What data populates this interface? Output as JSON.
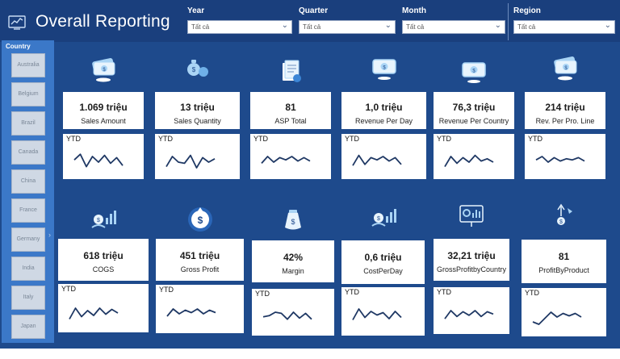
{
  "header": {
    "title": "Overall Reporting",
    "title_icon": "report-chart-icon",
    "filters": [
      {
        "label": "Year",
        "value": "Tất cả"
      },
      {
        "label": "Quarter",
        "value": "Tất cả"
      },
      {
        "label": "Month",
        "value": "Tất cả"
      },
      {
        "label": "Region",
        "value": "Tất cả"
      }
    ]
  },
  "sidebar": {
    "title": "Country",
    "countries": [
      "Australia",
      "Belgium",
      "Brazil",
      "Canada",
      "China",
      "France",
      "Germany",
      "India",
      "Italy",
      "Japan"
    ]
  },
  "kpis_row1": [
    {
      "value": "1.069 triệu",
      "label": "Sales Amount",
      "icon": "cash-stack-icon",
      "ytd": "YTD",
      "spark": [
        0.45,
        0.2,
        0.75,
        0.3,
        0.55,
        0.25,
        0.6,
        0.35,
        0.7
      ]
    },
    {
      "value": "13 triệu",
      "label": "Sales Quantity",
      "icon": "money-bags-icon",
      "ytd": "YTD",
      "spark": [
        0.75,
        0.3,
        0.55,
        0.6,
        0.25,
        0.8,
        0.35,
        0.55,
        0.4
      ]
    },
    {
      "value": "81",
      "label": "ASP Total",
      "icon": "document-check-icon",
      "ytd": "YTD",
      "spark": [
        0.6,
        0.3,
        0.55,
        0.35,
        0.45,
        0.3,
        0.5,
        0.35,
        0.5
      ]
    },
    {
      "value": "1,0 triệu",
      "label": "Revenue Per Day",
      "icon": "cash-bill-icon",
      "ytd": "YTD",
      "spark": [
        0.7,
        0.25,
        0.65,
        0.35,
        0.45,
        0.3,
        0.5,
        0.35,
        0.65
      ]
    },
    {
      "value": "76,3 triệu",
      "label": "Revenue Per Country",
      "icon": "cash-bill-icon",
      "ytd": "YTD",
      "spark": [
        0.75,
        0.3,
        0.6,
        0.35,
        0.55,
        0.25,
        0.5,
        0.4,
        0.55
      ]
    },
    {
      "value": "214 triệu",
      "label": "Rev. Per Pro. Line",
      "icon": "cash-stack-icon",
      "ytd": "YTD",
      "spark": [
        0.45,
        0.3,
        0.55,
        0.35,
        0.5,
        0.4,
        0.45,
        0.35,
        0.5
      ]
    }
  ],
  "kpis_row2": [
    {
      "value": "618 triệu",
      "label": "COGS",
      "icon": "money-growth-icon",
      "ytd": "YTD",
      "spark": [
        0.75,
        0.3,
        0.65,
        0.4,
        0.6,
        0.3,
        0.55,
        0.35,
        0.5
      ]
    },
    {
      "value": "451 triệu",
      "label": "Gross Profit",
      "icon": "profit-coin-icon",
      "ytd": "YTD",
      "spark": [
        0.6,
        0.3,
        0.5,
        0.35,
        0.45,
        0.3,
        0.5,
        0.35,
        0.45
      ]
    },
    {
      "value": "42%",
      "label": "Margin",
      "icon": "money-bag-icon",
      "ytd": "YTD",
      "spark": [
        0.5,
        0.45,
        0.3,
        0.35,
        0.6,
        0.3,
        0.55,
        0.35,
        0.6
      ]
    },
    {
      "value": "0,6 triệu",
      "label": "CostPerDay",
      "icon": "money-growth-icon",
      "ytd": "YTD",
      "spark": [
        0.65,
        0.2,
        0.55,
        0.3,
        0.45,
        0.35,
        0.6,
        0.3,
        0.55
      ]
    },
    {
      "value": "32,21 triệu",
      "label": "GrossProfitbyCountry",
      "icon": "analytics-board-icon",
      "ytd": "YTD",
      "spark": [
        0.65,
        0.3,
        0.55,
        0.35,
        0.5,
        0.3,
        0.55,
        0.35,
        0.45
      ]
    },
    {
      "value": "81",
      "label": "ProfitByProduct",
      "icon": "dollar-growth-icon",
      "ytd": "YTD",
      "spark": [
        0.7,
        0.8,
        0.55,
        0.3,
        0.5,
        0.35,
        0.45,
        0.35,
        0.5
      ]
    }
  ],
  "colors": {
    "background": "#1e4a8c",
    "header": "#1a3f7d",
    "sidebar": "#3b78c8",
    "sparkline": "#1f3864",
    "icon_light": "#a9d4f5"
  }
}
